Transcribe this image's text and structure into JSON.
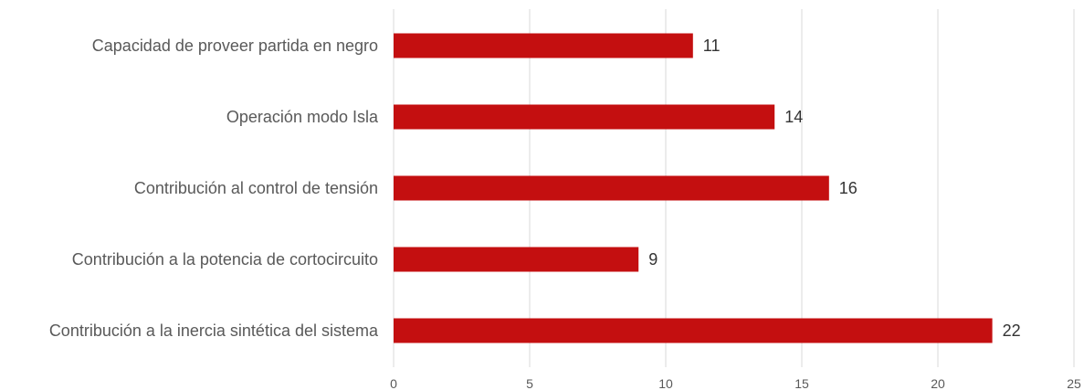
{
  "chart_data": {
    "type": "bar",
    "orientation": "horizontal",
    "title": "",
    "xlabel": "",
    "ylabel": "",
    "categories": [
      "Capacidad de proveer partida en negro",
      "Operación modo Isla",
      "Contribución al control de tensión",
      "Contribución a la potencia de cortocircuito",
      "Contribución a la inercia sintética del sistema"
    ],
    "values": [
      11,
      14,
      16,
      9,
      22
    ],
    "value_labels": [
      "11",
      "14",
      "16",
      "9",
      "22"
    ],
    "xlim": [
      0,
      25
    ],
    "x_ticks": [
      0,
      5,
      10,
      15,
      20,
      25
    ],
    "x_tick_labels": [
      "0",
      "5",
      "10",
      "15",
      "20",
      "25"
    ],
    "grid": "vertical",
    "legend": "none",
    "bar_color": "#c40f10"
  }
}
